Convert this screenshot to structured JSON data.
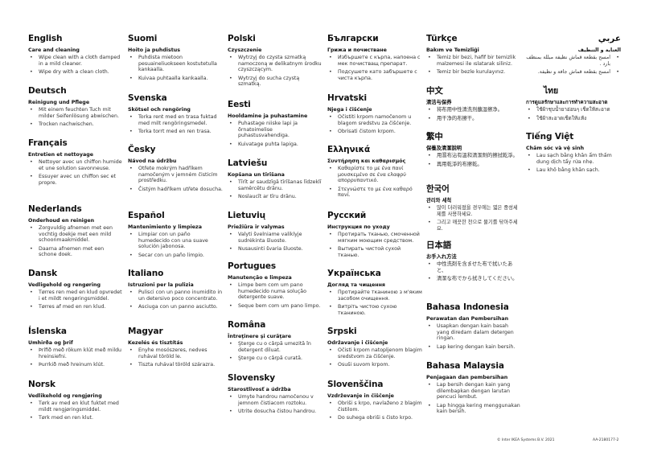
{
  "sections": [
    {
      "lang": "English",
      "subtitle": "Care and cleaning",
      "items": [
        "Wipe clean with a cloth damped in a mild cleaner.",
        "Wipe dry with a clean cloth."
      ]
    },
    {
      "lang": "Deutsch",
      "subtitle": "Reinigung und Pflege",
      "items": [
        "Mit einem feuchten Tuch mit milder Seifenlösung abwischen.",
        "Trocken nachwischen."
      ]
    },
    {
      "lang": "Français",
      "subtitle": "Entretien et nettoyage",
      "items": [
        "Nettoyer avec un chiffon humide et une solution savonneuse.",
        "Essuyer avec un chiffon sec et propre."
      ]
    },
    {
      "lang": "Nederlands",
      "subtitle": "Onderhoud en reinigen",
      "items": [
        "Zorgvuldig afnemen met een vochtig doekje met een mild schoonmaakmiddel.",
        "Daarna afnemen met een schone doek."
      ]
    },
    {
      "lang": "Dansk",
      "subtitle": "Vedligehold og rengøring",
      "items": [
        "Tørres ren med en klud opvredet i et mildt rengøringsmiddel.",
        "Tørres af med en ren klud."
      ]
    },
    {
      "lang": "Íslenska",
      "subtitle": "Umhirða og þrif",
      "items": [
        "Þrífið með rökum klút með mildu hreinsiefni.",
        "Þurrkið með hreinum klút."
      ]
    },
    {
      "lang": "Norsk",
      "subtitle": "Vedlikehold og rengjøring",
      "items": [
        "Tørk av med en klut fuktet med mildt rengjøringsmiddel.",
        "Tørk med en ren klut."
      ]
    },
    {
      "lang": "Suomi",
      "subtitle": "Hoito ja puhdistus",
      "items": [
        "Puhdista mietoon pesuaineliuokseen kostutetulla kankaalla.",
        "Kuivaa puhtaalla kankaalla."
      ]
    },
    {
      "lang": "Svenska",
      "subtitle": "Skötsel och rengöring",
      "items": [
        "Torka rent med en trasa fuktad med milt rengöringsmedel.",
        "Torka torrt med en ren trasa."
      ]
    },
    {
      "lang": "Česky",
      "subtitle": "Návod na údržbu",
      "items": [
        "Otřete mokrým hadříkem namočeným v jemném čisticím prostředku.",
        "Čistým hadříkem utřete dosucha."
      ]
    },
    {
      "lang": "Español",
      "subtitle": "Mantenimiento y limpieza",
      "items": [
        "Limpiar con un paño humedecido con una suave solución jabonosa.",
        "Secar con un paño limpio."
      ]
    },
    {
      "lang": "Italiano",
      "subtitle": "Istruzioni per la pulizia",
      "items": [
        "Pulisci con un panno inumidito in un detersivo poco concentrato.",
        "Asciuga con un panno asciutto."
      ]
    },
    {
      "lang": "Magyar",
      "subtitle": "Kezelés és tisztítás",
      "items": [
        "Enyhe mosószeres, nedves ruhával töröld le.",
        "Tiszta ruhával töröld szárazra."
      ]
    },
    {
      "lang": "Polski",
      "subtitle": "Czyszczenie",
      "items": [
        "Wytrzyj do czysta szmatką namoczoną w delikatnym środku czyszczącym.",
        "Wytrzyj do sucha czystą szmatką."
      ]
    },
    {
      "lang": "Eesti",
      "subtitle": "Hooldamine ja puhastamine",
      "items": [
        "Puhastage niiske lapi ja õrnatoimelise puhastusvahendiga.",
        "Kuivatage puhta lapiga."
      ]
    },
    {
      "lang": "Latviešu",
      "subtitle": "Kopšana un tīrīšana",
      "items": [
        "Tīrīt ar saudzīgā tīrīšanas līdzeklī samērcētu drānu.",
        "Noslaucīt ar tīru drānu."
      ]
    },
    {
      "lang": "Lietuvių",
      "subtitle": "Priežiūra ir valymas",
      "items": [
        "Valyti švelniame valiklyje sudrėkinta šluoste.",
        "Nusausinti švaria šluoste."
      ]
    },
    {
      "lang": "Portugues",
      "subtitle": "Manutenção e limpeza",
      "items": [
        "Limpe bem com um pano humedecido numa solução detergente suave.",
        "Seque bem com um pano limpo."
      ]
    },
    {
      "lang": "Româna",
      "subtitle": "Întreţinere şi curăţare",
      "items": [
        "Şterge cu o cârpă umezită în detergent diluat.",
        "Şterge cu o cârpă curată."
      ]
    },
    {
      "lang": "Slovensky",
      "subtitle": "Starostlivosť a údržba",
      "items": [
        "Umyte handrou namočenou v jemnom čistiacom roztoku.",
        "Utrite dosucha čistou handrou."
      ]
    },
    {
      "lang": "Български",
      "subtitle": "Грижа и почистване",
      "items": [
        "Избършете с кърпа, напоена с мек почистващ препарат.",
        "Подсушете като забършете с чиста кърпа."
      ]
    },
    {
      "lang": "Hrvatski",
      "subtitle": "Njega i čišćenje",
      "items": [
        "Očistiti krpom namočenom u blagom sredstvu za čišćenje.",
        "Obrisati čistom krpom."
      ]
    },
    {
      "lang": "Ελληνικά",
      "subtitle": "Συντήρηση και καθαρισμός",
      "items": [
        "Καθαρίστε το με ένα πανί μουσκεμένο σε ένα ελαφρύ απορρυπαντικό.",
        "Στεγνώστε το με ένα καθαρό πανί."
      ]
    },
    {
      "lang": "Русский",
      "subtitle": "Инструкция по уходу",
      "items": [
        "Протирать тканью, смоченной мягким моющим средством.",
        "Вытирать чистой сухой тканью."
      ]
    },
    {
      "lang": "Українська",
      "subtitle": "Догляд та чищення",
      "items": [
        "Протирайте тканиною з м'яким засобом очищення.",
        "Витріть чистою сухою тканиною."
      ]
    },
    {
      "lang": "Srpski",
      "subtitle": "Održavanje i čišćenje",
      "items": [
        "Očisti krpom natopljenom blagim sredstvom za čišćenje.",
        "Osuši suvom krpom."
      ]
    },
    {
      "lang": "Slovenščina",
      "subtitle": "Vzdrževanje in čiščenje",
      "items": [
        "Obriši s krpo, navlaženo z blagim čistilom.",
        "Do suhega obriši s čisto krpo."
      ]
    },
    {
      "lang": "Türkçe",
      "subtitle": "Bakım ve Temizliği",
      "items": [
        "Temiz bir bezi, hafif bir temizlik malzemesi ile ıslatarak siliniz.",
        "Temiz bir bezle kurulayınız."
      ]
    },
    {
      "lang": "中文",
      "subtitle": "清洁与保养",
      "items": [
        "将布用中性清洗剂蘸湿擦净。",
        "用干净的布擦干。"
      ]
    },
    {
      "lang": "繁中",
      "subtitle": "保養及清潔說明",
      "items": [
        "用濕布沾有溫和清潔劑的擦拭乾淨。",
        "再用乾淨的布擦乾。"
      ]
    },
    {
      "lang": "한국어",
      "subtitle": "관리와 세척",
      "items": [
        "많이 더러워졌을 경우에는 엷은 중성세제를 사용하세요.",
        "그리고 깨끗한 천으로 물기를 닦아주세요."
      ]
    },
    {
      "lang": "日本語",
      "subtitle": "お手入れ方法",
      "items": [
        "中性洗剤を含ませた布で拭いたあと、",
        "清潔な布でから拭きしてください。"
      ]
    },
    {
      "lang": "Bahasa Indonesia",
      "subtitle": "Perawatan dan Pembersihan",
      "items": [
        "Usapkan dengan kain basah yang diredam dalam detergen ringan.",
        "Lap kering dengan kain bersih."
      ]
    },
    {
      "lang": "Bahasa Malaysia",
      "subtitle": "Penjagaan dan pembersihan",
      "items": [
        "Lap bersih dengan kain yang dilembapkan dengan larutan pencuci lembut.",
        "Lap hingga kering menggunakan kain bersih."
      ]
    },
    {
      "lang": "عربي",
      "subtitle": "العناية و التنظيف",
      "items": [
        "امسح بقطعة قماش نظيفة مبللة بمنظف بارد .",
        "امسح بقطعة قماش جافة و نظيفة."
      ]
    },
    {
      "lang": "ไทย",
      "subtitle": "การดูแลรักษาและการทำความสะอาด",
      "items": [
        "ใช้ผ้าชุบน้ำยาอ่อนๆ เช็ดให้สะอาด",
        "ใช้ผ้าสะอาดเช็ดให้แห้ง"
      ]
    },
    {
      "lang": "Tiếng Việt",
      "subtitle": "Chăm sóc và vệ sinh",
      "items": [
        "Lau sạch bằng khăn ẩm thấm dung dịch tẩy rửa nhẹ.",
        "Lau khô bằng khăn sạch."
      ]
    }
  ],
  "footer": {
    "copyright": "© Inter IKEA Systems B.V. 2021",
    "code": "AA-2180177-2"
  }
}
